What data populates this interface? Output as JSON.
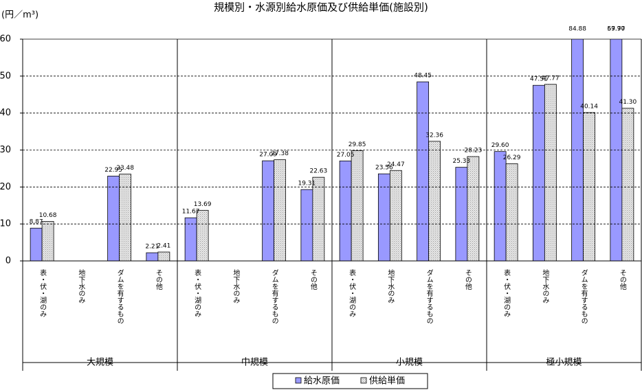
{
  "chart_data": {
    "type": "bar",
    "title": "規模別・水源別給水原価及び供給単価(施設別)",
    "y_axis_label": "(円／m³)",
    "categories": [
      "表・伏・湖のみ",
      "地下水のみ",
      "ダムを有するもの",
      "その他",
      "表・伏・湖のみ",
      "地下水のみ",
      "ダムを有するもの",
      "その他",
      "表・伏・湖のみ",
      "地下水のみ",
      "ダムを有するもの",
      "その他",
      "表・伏・湖のみ",
      "地下水のみ",
      "ダムを有するもの",
      "その他"
    ],
    "groups": [
      "大規模",
      "中規模",
      "小規模",
      "極小規模"
    ],
    "series": [
      {
        "name": "給水原価",
        "color": "#9999ff",
        "values": [
          8.87,
          null,
          22.95,
          2.21,
          11.67,
          null,
          27.09,
          19.31,
          27.05,
          23.56,
          48.45,
          25.33,
          29.6,
          47.51,
          84.88,
          67.7
        ],
        "value_labels": [
          "8.87",
          null,
          "22.95",
          "2.21",
          "11.67",
          null,
          "27.09",
          "19.31",
          "27.05",
          "23.56",
          "48.45",
          "25.33",
          "29.60",
          "47.51",
          "84.88",
          "67.70"
        ]
      },
      {
        "name": "供給単価",
        "color": "#e4e4e4",
        "values": [
          10.68,
          null,
          23.48,
          2.41,
          13.69,
          null,
          27.38,
          22.63,
          29.85,
          24.47,
          32.36,
          28.23,
          26.29,
          47.77,
          40.14,
          41.3
        ],
        "value_labels": [
          "10.68",
          null,
          "23.48",
          "2.41",
          "13.69",
          null,
          "27.38",
          "22.63",
          "29.85",
          "24.47",
          "32.36",
          "28.23",
          "26.29",
          "47.77",
          "40.14",
          "41.30"
        ]
      }
    ],
    "annotations": [
      "59.97"
    ],
    "ylim": [
      0,
      60
    ],
    "yticks": [
      0,
      10,
      20,
      30,
      40,
      50,
      60
    ],
    "grid": true,
    "legend": "bottom"
  }
}
